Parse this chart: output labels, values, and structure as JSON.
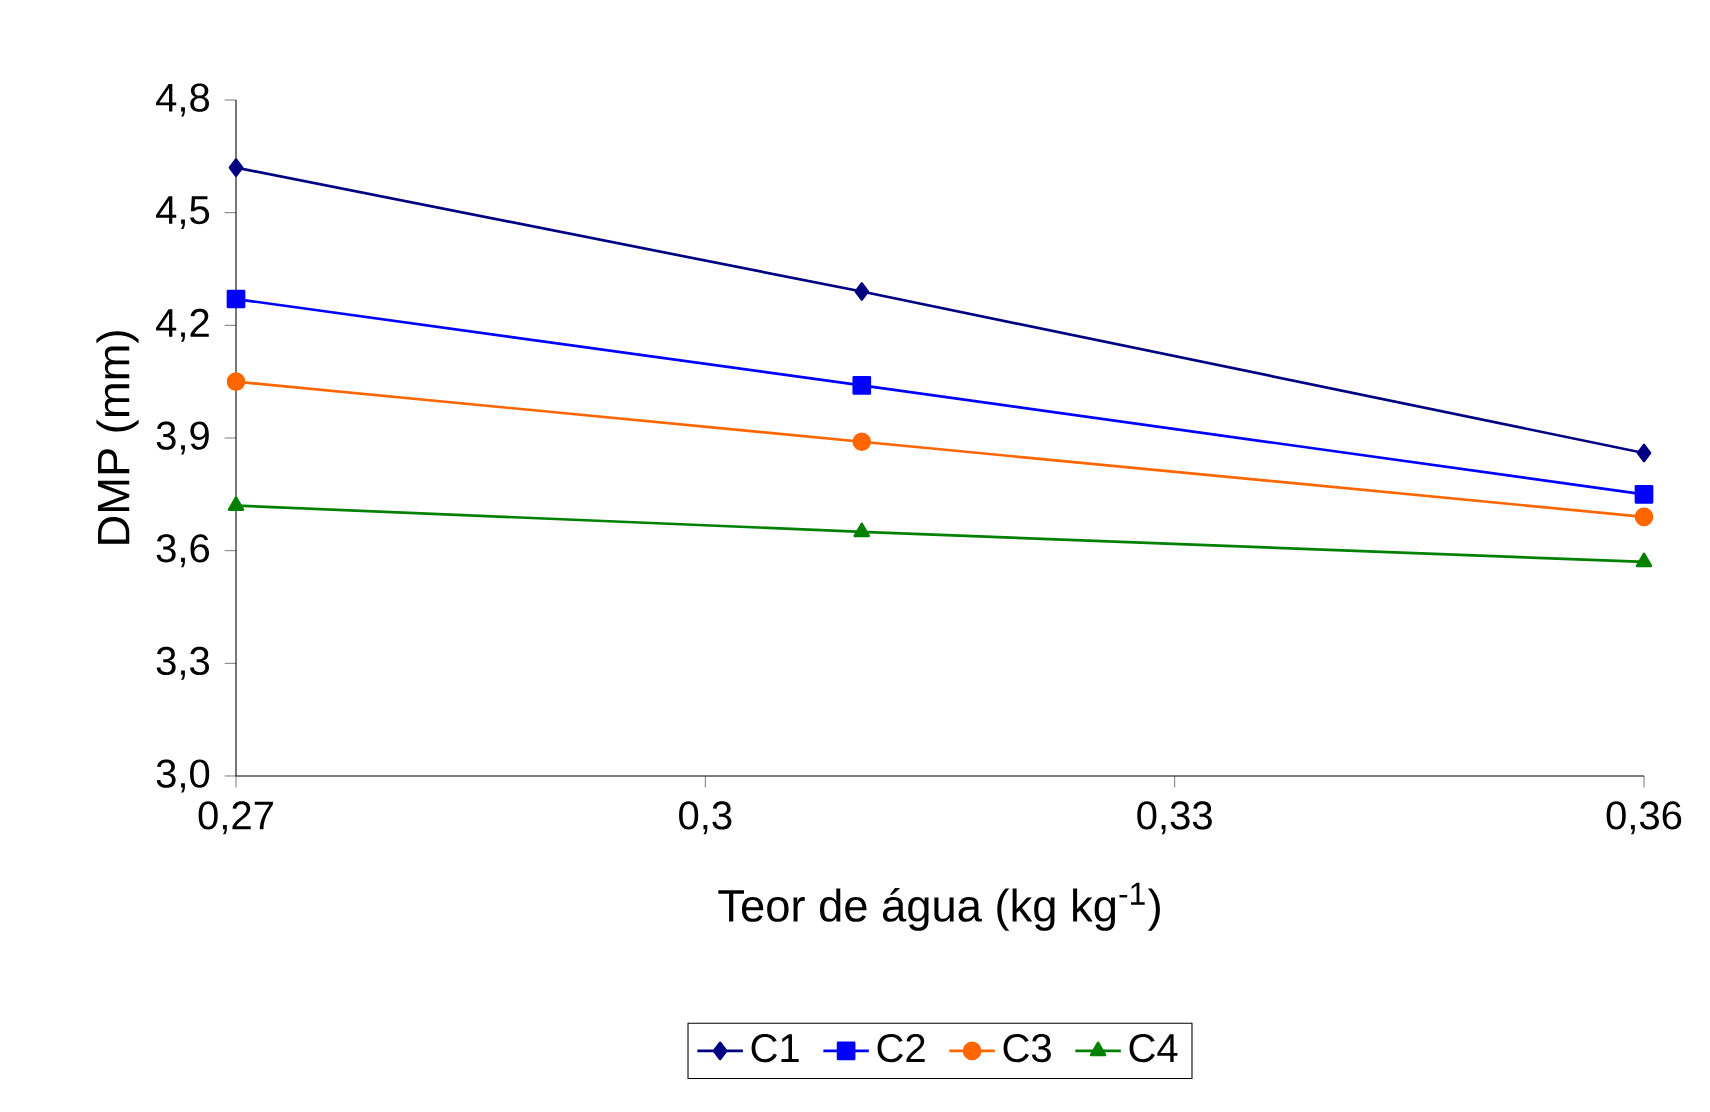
{
  "chart_data": {
    "type": "line",
    "xlabel": "Teor de água (kg kg$^{-1}$)",
    "ylabel": "DMP (mm)",
    "x": [
      0.27,
      0.31,
      0.36
    ],
    "series": [
      {
        "name": "C1",
        "color": "#000080",
        "marker": "diamond",
        "values": [
          4.62,
          4.29,
          3.86
        ]
      },
      {
        "name": "C2",
        "color": "#0000ff",
        "marker": "square",
        "values": [
          4.27,
          4.04,
          3.75
        ]
      },
      {
        "name": "C3",
        "color": "#ff6600",
        "marker": "circle",
        "values": [
          4.05,
          3.89,
          3.69
        ]
      },
      {
        "name": "C4",
        "color": "#008000",
        "marker": "triangle",
        "values": [
          3.72,
          3.65,
          3.57
        ]
      }
    ],
    "xlim": [
      0.27,
      0.36
    ],
    "xticks": [
      {
        "value": 0.27,
        "label": "0,27"
      },
      {
        "value": 0.3,
        "label": "0,3"
      },
      {
        "value": 0.33,
        "label": "0,33"
      },
      {
        "value": 0.36,
        "label": "0,36"
      }
    ],
    "ylim": [
      3.0,
      4.8
    ],
    "yticks": [
      {
        "value": 3.0,
        "label": "3,0"
      },
      {
        "value": 3.3,
        "label": "3,3"
      },
      {
        "value": 3.6,
        "label": "3,6"
      },
      {
        "value": 3.9,
        "label": "3,9"
      },
      {
        "value": 4.2,
        "label": "4,2"
      },
      {
        "value": 4.5,
        "label": "4,5"
      },
      {
        "value": 4.8,
        "label": "4,8"
      }
    ],
    "grid": false,
    "legend": "bottom",
    "line_style": "solid"
  }
}
